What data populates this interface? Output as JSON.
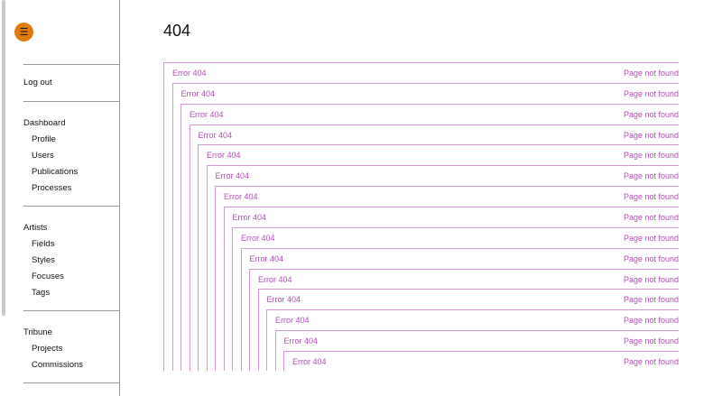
{
  "sidebar": {
    "logout": "Log out",
    "groups": [
      {
        "label": "Dashboard",
        "items": [
          "Profile",
          "Users",
          "Publications",
          "Processes"
        ]
      },
      {
        "label": "Artists",
        "items": [
          "Fields",
          "Styles",
          "Focuses",
          "Tags"
        ]
      },
      {
        "label": "Tribune",
        "items": [
          "Projects",
          "Commissions"
        ]
      }
    ]
  },
  "page": {
    "title": "404"
  },
  "errors": {
    "left": "Error 404",
    "right": "Page not found",
    "depth": 15
  },
  "colors": {
    "accent": "#e07b10",
    "error": "#b150b5"
  }
}
